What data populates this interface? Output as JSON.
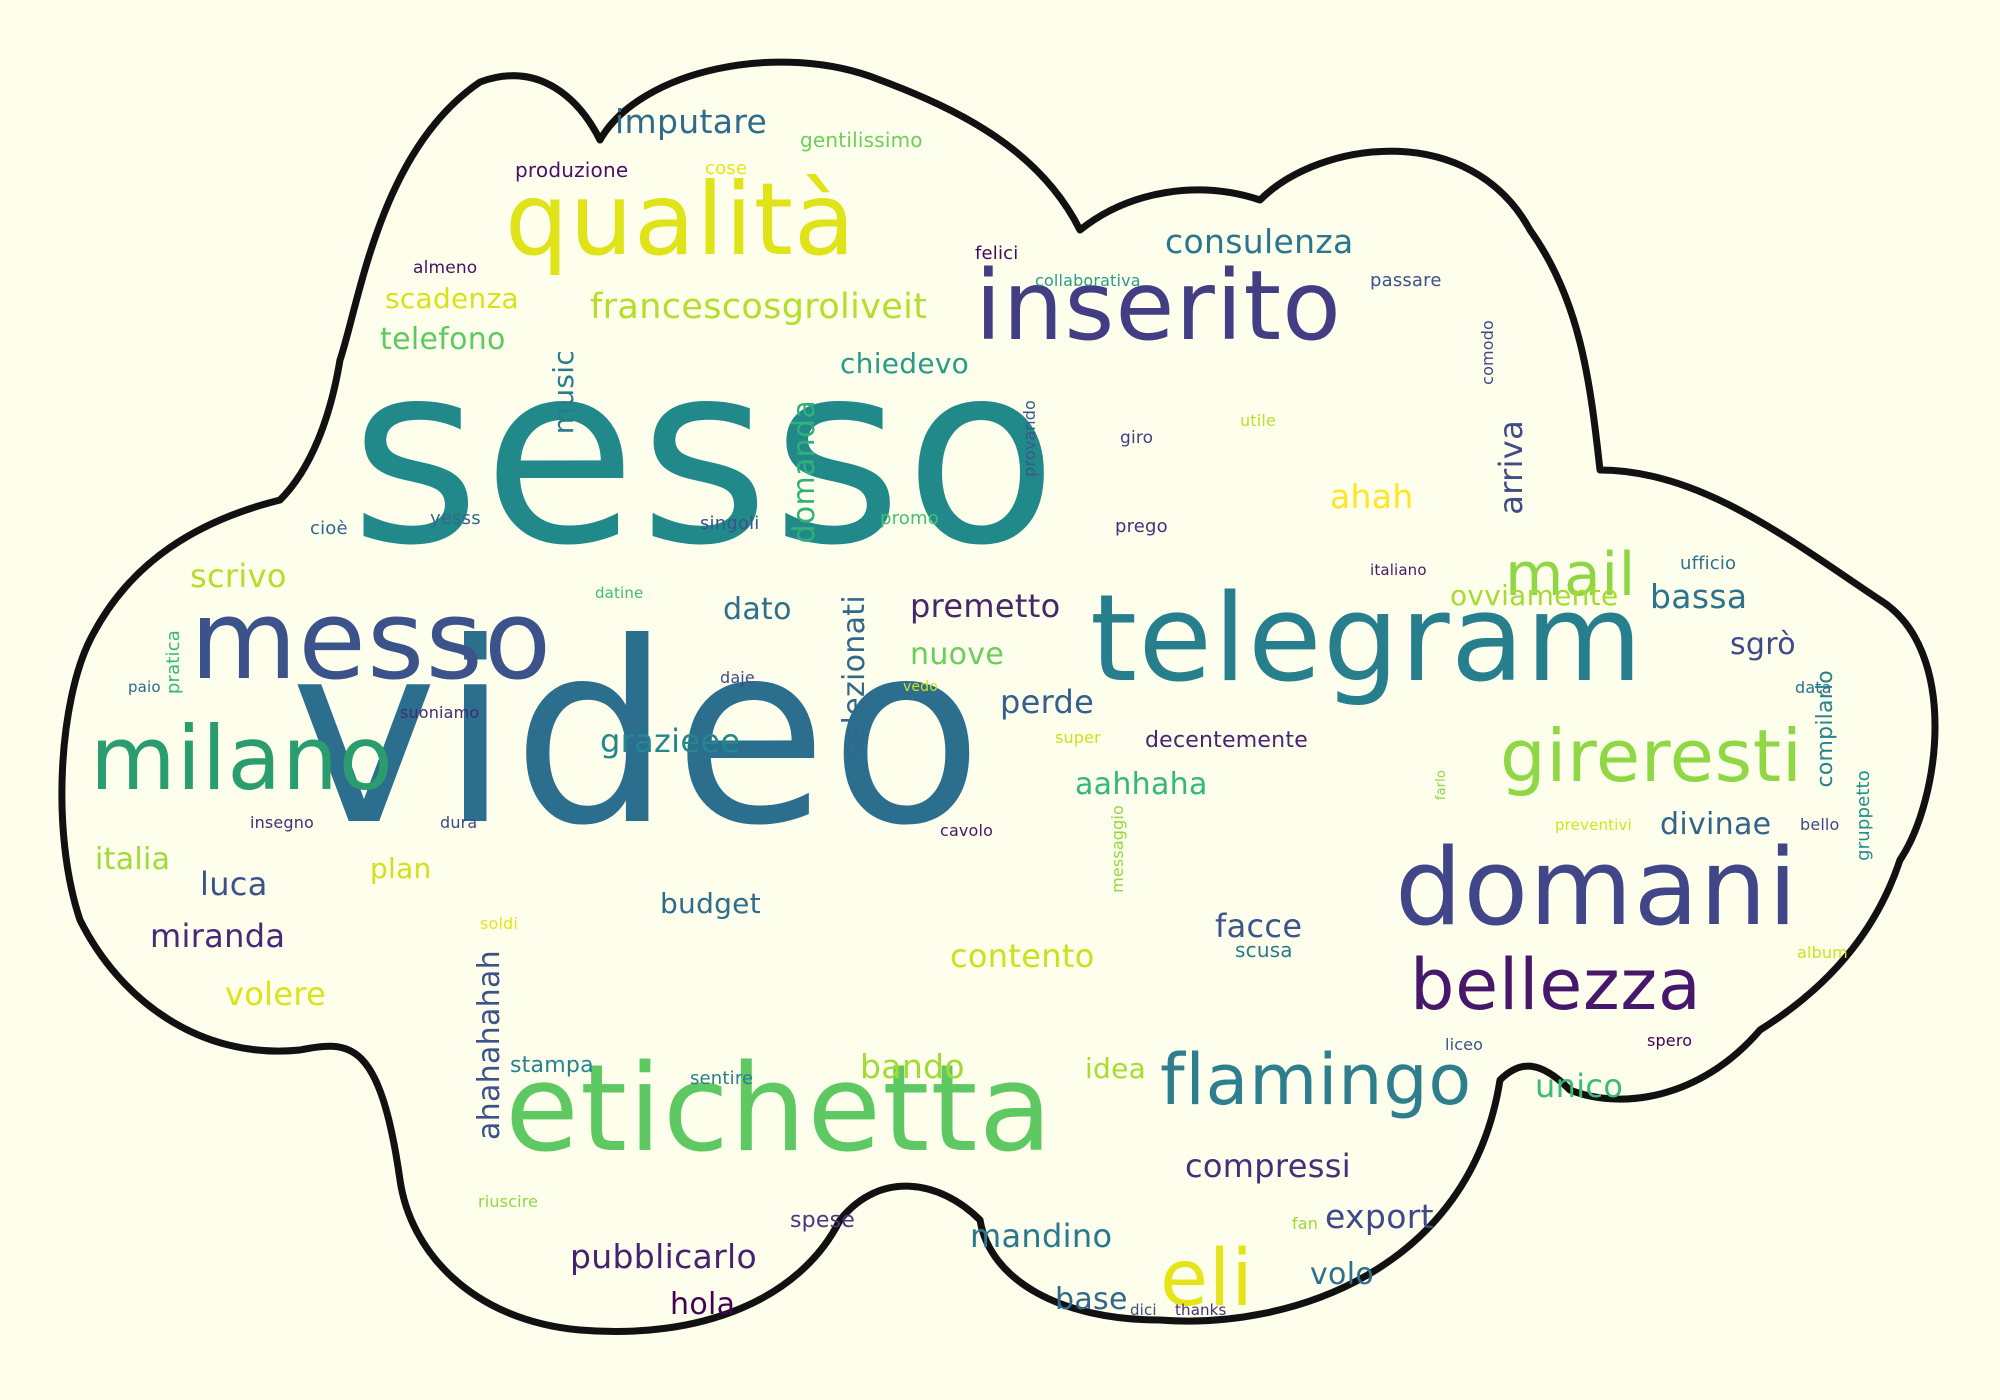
{
  "background": "#fdfeec",
  "outline_color": "#111111",
  "words": [
    {
      "text": "sesso",
      "color": "#22898a"
    },
    {
      "text": "video",
      "color": "#2c6e8e"
    },
    {
      "text": "telegram",
      "color": "#277f8e"
    },
    {
      "text": "inserito",
      "color": "#433d84"
    },
    {
      "text": "etichetta",
      "color": "#5ec962"
    },
    {
      "text": "messo",
      "color": "#3b528b"
    },
    {
      "text": "qualità",
      "color": "#dfe318"
    },
    {
      "text": "domani",
      "color": "#404688"
    },
    {
      "text": "milano",
      "color": "#2a9d6e"
    },
    {
      "text": "bellezza",
      "color": "#46176b"
    },
    {
      "text": "flamingo",
      "color": "#2e7e8e"
    },
    {
      "text": "gireresti",
      "color": "#8fd744"
    },
    {
      "text": "eli",
      "color": "#e5e419"
    },
    {
      "text": "mail",
      "color": "#8ed644"
    },
    {
      "text": "francescosgroliveit",
      "color": "#b5de2b"
    },
    {
      "text": "consulenza",
      "color": "#2a768e"
    },
    {
      "text": "imputare",
      "color": "#2f6b8e"
    },
    {
      "text": "scadenza",
      "color": "#d8e219"
    },
    {
      "text": "telefono",
      "color": "#5dc963"
    },
    {
      "text": "chiedevo",
      "color": "#2a9a8a"
    },
    {
      "text": "music",
      "color": "#2b7a8e"
    },
    {
      "text": "domanda",
      "color": "#32b07a"
    },
    {
      "text": "selezionati",
      "color": "#31688e"
    },
    {
      "text": "premetto",
      "color": "#46276b"
    },
    {
      "text": "nuove",
      "color": "#6ccd5a"
    },
    {
      "text": "perde",
      "color": "#355f8d"
    },
    {
      "text": "dato",
      "color": "#2e6e8e"
    },
    {
      "text": "grazieee",
      "color": "#24878e"
    },
    {
      "text": "scrivo",
      "color": "#b5de2b"
    },
    {
      "text": "arriva",
      "color": "#404b88"
    },
    {
      "text": "ahah",
      "color": "#fde725"
    },
    {
      "text": "bassa",
      "color": "#2c738e"
    },
    {
      "text": "ovviamente",
      "color": "#a5db36"
    },
    {
      "text": "sgrò",
      "color": "#3e4a89"
    },
    {
      "text": "aahhaha",
      "color": "#35b779"
    },
    {
      "text": "decentemente",
      "color": "#482475"
    },
    {
      "text": "divinae",
      "color": "#33628d"
    },
    {
      "text": "italia",
      "color": "#a0da39"
    },
    {
      "text": "luca",
      "color": "#3b528b"
    },
    {
      "text": "miranda",
      "color": "#482878"
    },
    {
      "text": "volere",
      "color": "#dde318"
    },
    {
      "text": "plan",
      "color": "#d0e11c"
    },
    {
      "text": "budget",
      "color": "#2f6c8e"
    },
    {
      "text": "facce",
      "color": "#3a548c"
    },
    {
      "text": "scusa",
      "color": "#2a788e"
    },
    {
      "text": "contento",
      "color": "#cae11f"
    },
    {
      "text": "ahahahahah",
      "color": "#3b528b"
    },
    {
      "text": "bando",
      "color": "#a2da37"
    },
    {
      "text": "idea",
      "color": "#a8db34"
    },
    {
      "text": "compressi",
      "color": "#472d7b"
    },
    {
      "text": "export",
      "color": "#3e4989"
    },
    {
      "text": "unico",
      "color": "#3cbb75"
    },
    {
      "text": "mandino",
      "color": "#2a788e"
    },
    {
      "text": "pubblicarlo",
      "color": "#482173"
    },
    {
      "text": "hola",
      "color": "#440154"
    },
    {
      "text": "base",
      "color": "#31688e"
    },
    {
      "text": "volo",
      "color": "#2e6f8e"
    },
    {
      "text": "spese",
      "color": "#453781"
    },
    {
      "text": "stampa",
      "color": "#26828e"
    },
    {
      "text": "sentire",
      "color": "#277f8e"
    },
    {
      "text": "produzione",
      "color": "#4b0f6b"
    },
    {
      "text": "gentilissimo",
      "color": "#6ece58"
    },
    {
      "text": "cose",
      "color": "#e5e419"
    },
    {
      "text": "almeno",
      "color": "#471063"
    },
    {
      "text": "felici",
      "color": "#46085c"
    },
    {
      "text": "collaborativa",
      "color": "#2a9a89"
    },
    {
      "text": "passare",
      "color": "#3b528b"
    },
    {
      "text": "comodo",
      "color": "#404688"
    },
    {
      "text": "provando",
      "color": "#38588c"
    },
    {
      "text": "giro",
      "color": "#433e85"
    },
    {
      "text": "utile",
      "color": "#bddf26"
    },
    {
      "text": "prego",
      "color": "#46317e"
    },
    {
      "text": "promo",
      "color": "#46c06f"
    },
    {
      "text": "singoli",
      "color": "#3b528b"
    },
    {
      "text": "yesss",
      "color": "#31688e"
    },
    {
      "text": "cioè",
      "color": "#31678e"
    },
    {
      "text": "ufficio",
      "color": "#2c728e"
    },
    {
      "text": "italiano",
      "color": "#48186a"
    },
    {
      "text": "datine",
      "color": "#3fbc73"
    },
    {
      "text": "pratica",
      "color": "#35b779"
    },
    {
      "text": "paio",
      "color": "#32648e"
    },
    {
      "text": "daje",
      "color": "#3e4a89"
    },
    {
      "text": "vedo",
      "color": "#d2e21b"
    },
    {
      "text": "suoniamo",
      "color": "#482777"
    },
    {
      "text": "super",
      "color": "#cde11d"
    },
    {
      "text": "farlo",
      "color": "#90d743"
    },
    {
      "text": "compilarlo",
      "color": "#25838e"
    },
    {
      "text": "data",
      "color": "#2c718e"
    },
    {
      "text": "preventivi",
      "color": "#d5e21a"
    },
    {
      "text": "gruppetto",
      "color": "#21908d"
    },
    {
      "text": "bello",
      "color": "#3f4788"
    },
    {
      "text": "insegno",
      "color": "#472a7a"
    },
    {
      "text": "dura",
      "color": "#3e4989"
    },
    {
      "text": "cavolo",
      "color": "#481668"
    },
    {
      "text": "messaggio",
      "color": "#94d840"
    },
    {
      "text": "soldi",
      "color": "#e7e419"
    },
    {
      "text": "album",
      "color": "#d0e11c"
    },
    {
      "text": "liceo",
      "color": "#3b528b"
    },
    {
      "text": "spero",
      "color": "#440154"
    },
    {
      "text": "riuscire",
      "color": "#90d743"
    },
    {
      "text": "fan",
      "color": "#9bd93c"
    },
    {
      "text": "dici",
      "color": "#3e4c8a"
    },
    {
      "text": "thanks",
      "color": "#472d7b"
    }
  ]
}
